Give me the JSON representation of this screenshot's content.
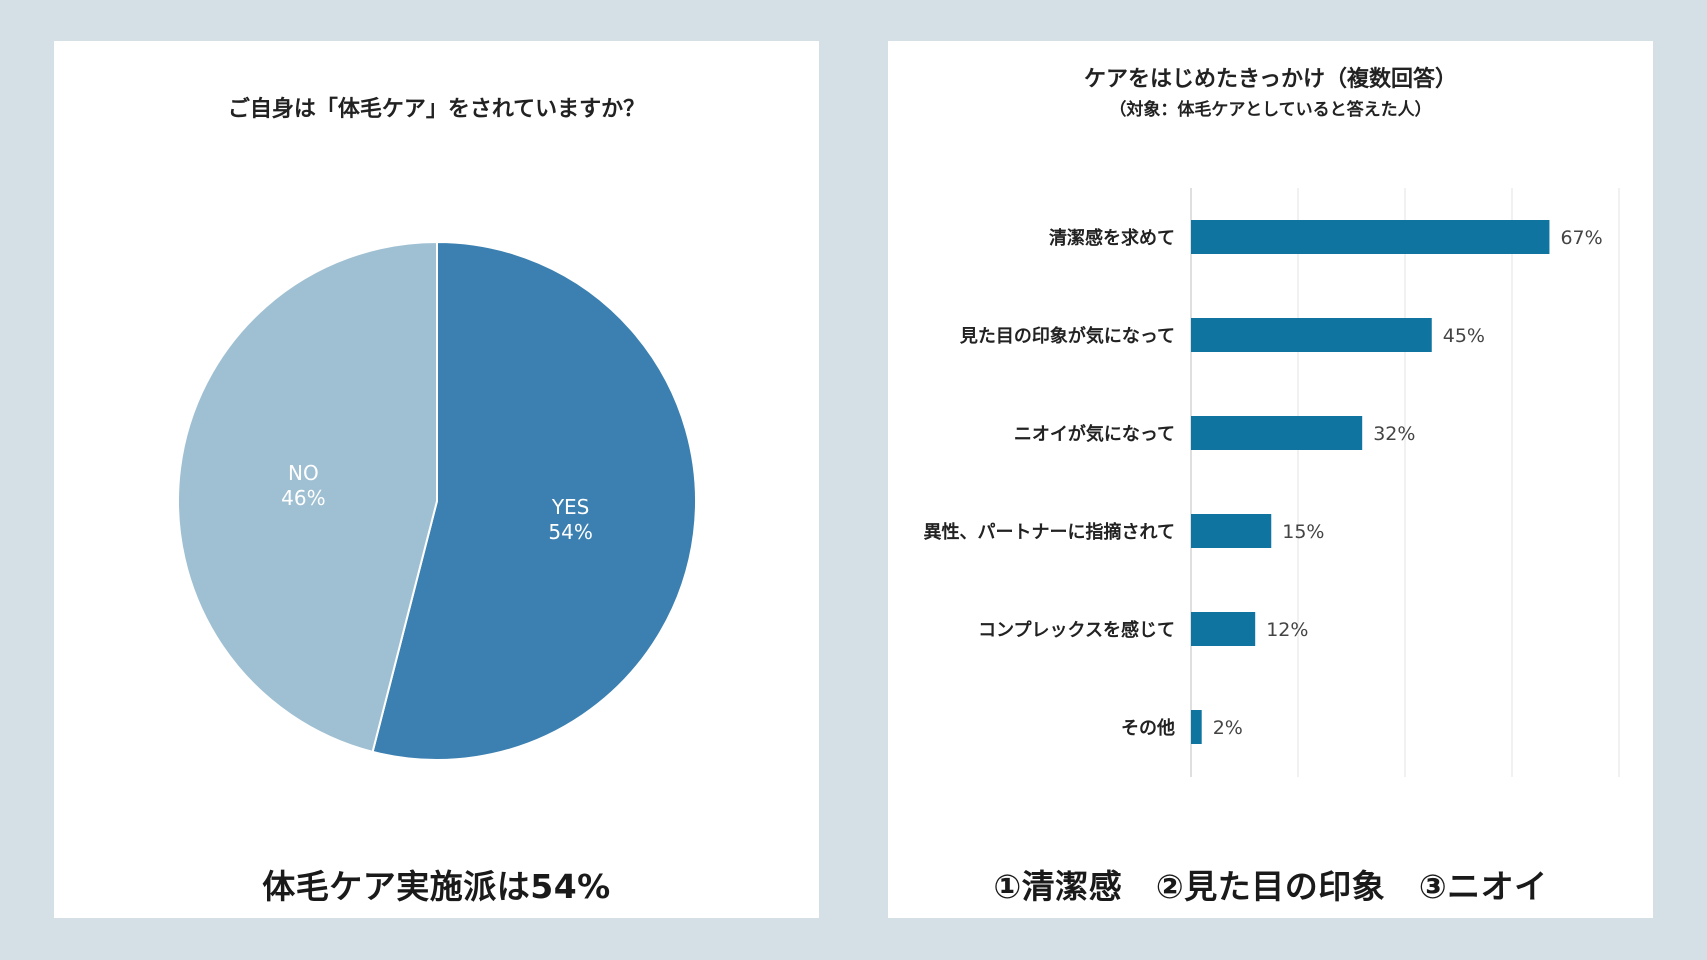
{
  "chart_data": [
    {
      "type": "pie",
      "title": "ご自身は「体毛ケア」をされていますか？",
      "caption": "体毛ケア実施派は54%",
      "slices": [
        {
          "label": "YES",
          "value": 54,
          "display": "54%",
          "color": "#3b80b1"
        },
        {
          "label": "NO",
          "value": 46,
          "display": "46%",
          "color": "#9fc0d3"
        }
      ]
    },
    {
      "type": "bar",
      "orientation": "horizontal",
      "title": "ケアをはじめたきっかけ（複数回答）",
      "subtitle": "（対象：体毛ケアとしていると答えた人）",
      "caption": "①清潔感　②見た目の印象　③ニオイ",
      "categories": [
        "清潔感を求めて",
        "見た目の印象が気になって",
        "ニオイが気になって",
        "異性、パートナーに指摘されて",
        "コンプレックスを感じて",
        "その他"
      ],
      "values": [
        67,
        45,
        32,
        15,
        12,
        2
      ],
      "value_labels": [
        "67%",
        "45%",
        "32%",
        "15%",
        "12%",
        "2%"
      ],
      "xlim": [
        0,
        80
      ],
      "grid": true,
      "bar_color": "#0f74a0"
    }
  ]
}
